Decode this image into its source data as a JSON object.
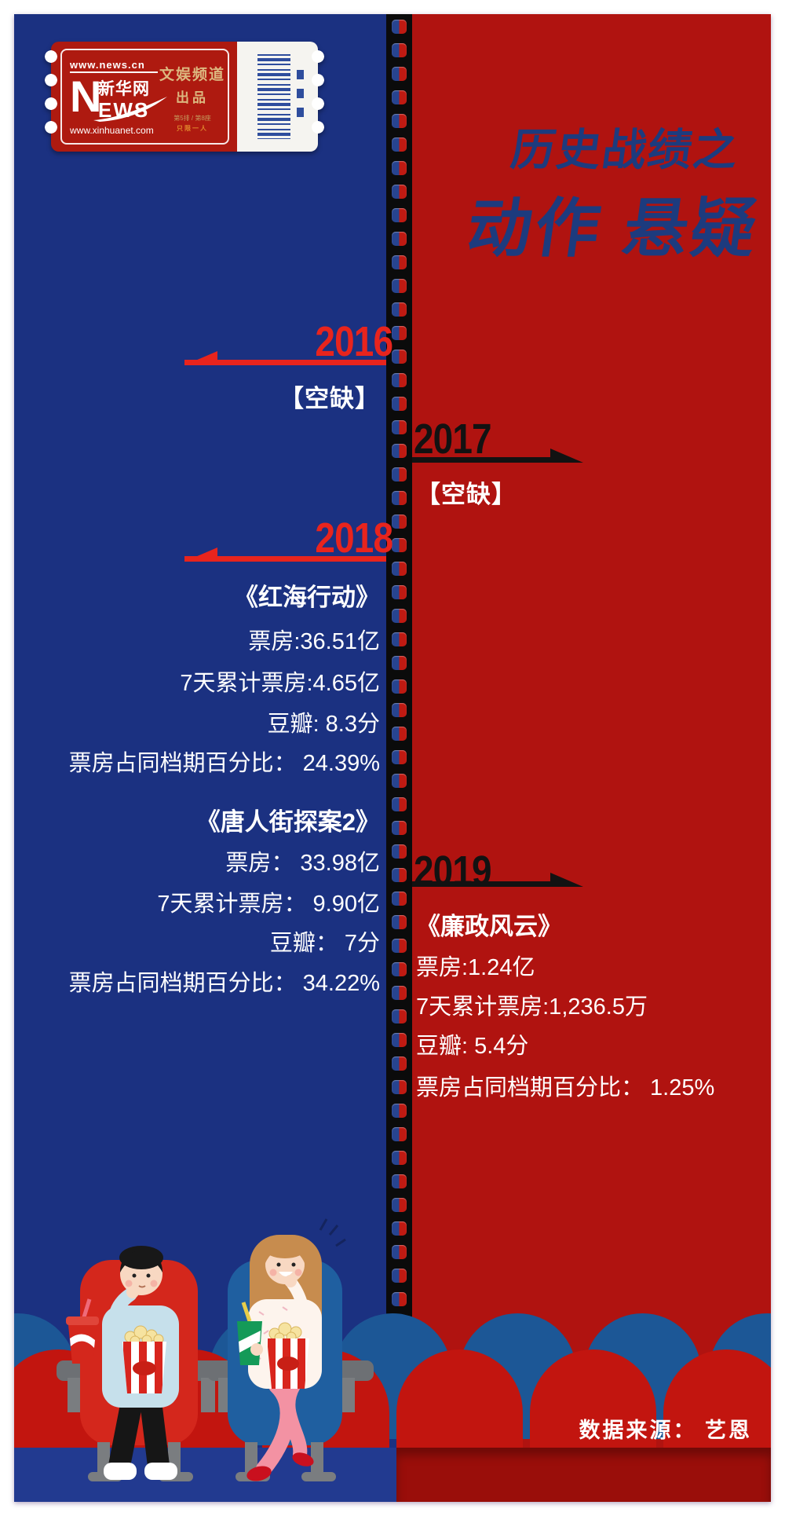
{
  "ticket": {
    "url_top": "www.news.cn",
    "logo_n": "N",
    "logo_cn": "新华网",
    "logo_ews": "EWS",
    "url_bottom": "www.xinhuanet.com",
    "channel": "文娱频道",
    "produced": "出品",
    "seat_info": "第5排 / 第8座",
    "admit_one": "只限一人"
  },
  "title": {
    "line1": "历史战绩之",
    "line2": "动作 悬疑"
  },
  "timeline": {
    "y2016": {
      "year": "2016",
      "status": "【空缺】"
    },
    "y2017": {
      "year": "2017",
      "status": "【空缺】"
    },
    "y2018": {
      "year": "2018",
      "movies": [
        {
          "title": "《红海行动》",
          "box_office": "票房:36.51亿",
          "seven_day": "7天累计票房:4.65亿",
          "douban": "豆瓣: 8.3分",
          "share": "票房占同档期百分比： 24.39%"
        },
        {
          "title": "《唐人街探案2》",
          "box_office": "票房： 33.98亿",
          "seven_day": "7天累计票房： 9.90亿",
          "douban": "豆瓣： 7分",
          "share": "票房占同档期百分比： 34.22%"
        }
      ]
    },
    "y2019": {
      "year": "2019",
      "movies": [
        {
          "title": "《廉政风云》",
          "box_office": "票房:1.24亿",
          "seven_day": "7天累计票房:1,236.5万",
          "douban": "豆瓣: 5.4分",
          "share": "票房占同档期百分比： 1.25%"
        }
      ]
    }
  },
  "source": "数据来源： 艺恩",
  "colors": {
    "panel_blue": "#1b3181",
    "panel_red": "#b01310",
    "year_red": "#e8241d",
    "year_black": "#121212",
    "title_navy": "#1d3b7e",
    "seat_row_red": "#c2150f",
    "seat_row_blue": "#1c5796",
    "floor_red": "#9a0e0a",
    "ticket_gold": "#dcb77f",
    "ticket_orange": "#e0862c"
  }
}
